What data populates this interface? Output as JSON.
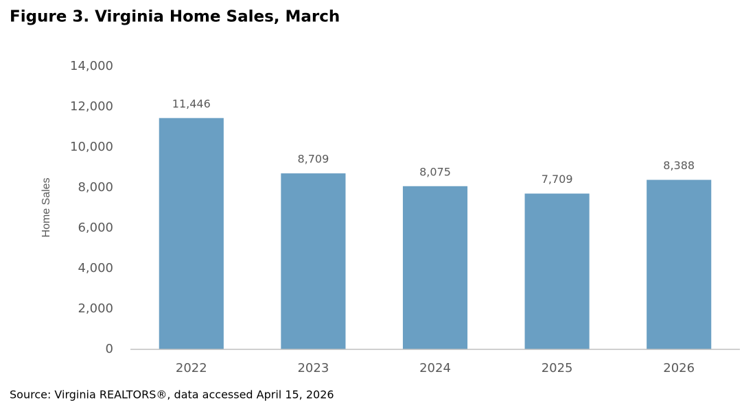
{
  "chart_data": {
    "type": "bar",
    "title": "Figure 3. Virginia Home Sales, March",
    "y_label": "Home Sales",
    "source": "Source: Virginia REALTORS®, data accessed April 15, 2026",
    "categories": [
      "2022",
      "2023",
      "2024",
      "2025",
      "2026"
    ],
    "values": [
      11446,
      8709,
      8075,
      7709,
      8388
    ],
    "value_labels": [
      "11,446",
      "8,709",
      "8,075",
      "7,709",
      "8,388"
    ],
    "color": "#6a9fc3",
    "ylim": [
      0,
      14000
    ],
    "yticks": [
      0,
      {
        "value": 2000,
        "label": "2,000"
      },
      {
        "value": 4000,
        "label": "4,000"
      },
      {
        "value": 6000,
        "label": "6,000"
      },
      {
        "value": 8000,
        "label": "8,000"
      },
      {
        "value": 10000,
        "label": "10,000"
      },
      {
        "value": 12000,
        "label": "12,000"
      },
      {
        "value": 14000,
        "label": "14,000"
      }
    ],
    "grid": false
  }
}
